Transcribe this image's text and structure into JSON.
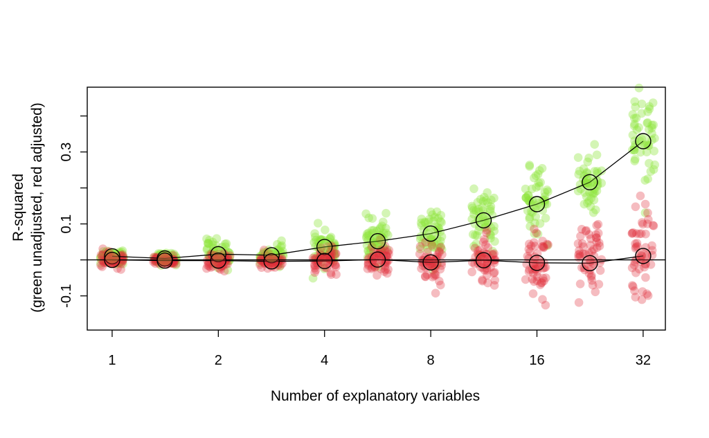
{
  "chart_data": {
    "type": "scatter",
    "title": "",
    "xlabel": "Number of explanatory variables",
    "ylabel_line1": "R-squared",
    "ylabel_line2": "(green unadjusted, red adjusted)",
    "x_scale": "log2",
    "x_ticks": [
      1,
      2,
      4,
      8,
      16,
      32
    ],
    "x_tick_labels": [
      "1",
      "2",
      "4",
      "8",
      "16",
      "32"
    ],
    "xlim": [
      0.85,
      37
    ],
    "y_ticks": [
      -0.1,
      0.1,
      0.3
    ],
    "y_tick_labels": [
      "-0.1",
      "0.1",
      "0.3"
    ],
    "y_minor_ticks": [
      0.0,
      0.2,
      0.4
    ],
    "ylim": [
      -0.195,
      0.48
    ],
    "reference_line_y": 0,
    "grid": false,
    "colors": {
      "green": "#8ee63c",
      "red": "#e0303a",
      "mean_marker": "#000000"
    },
    "series": [
      {
        "name": "green unadjusted",
        "x": [
          1,
          1.41,
          2,
          2.83,
          4,
          5.66,
          8,
          11.3,
          16,
          22.6,
          32
        ],
        "mean": [
          0.01,
          0.004,
          0.016,
          0.013,
          0.036,
          0.052,
          0.073,
          0.11,
          0.155,
          0.216,
          0.33
        ],
        "spread_sd": [
          0.012,
          0.008,
          0.02,
          0.014,
          0.025,
          0.028,
          0.035,
          0.04,
          0.045,
          0.055,
          0.07
        ]
      },
      {
        "name": "red adjusted",
        "x": [
          1,
          1.41,
          2,
          2.83,
          4,
          5.66,
          8,
          11.3,
          16,
          22.6,
          32
        ],
        "mean": [
          0.0,
          -0.002,
          -0.002,
          -0.004,
          -0.003,
          0.001,
          -0.007,
          -0.001,
          -0.008,
          -0.009,
          0.011
        ],
        "spread_sd": [
          0.01,
          0.006,
          0.012,
          0.01,
          0.018,
          0.022,
          0.03,
          0.035,
          0.045,
          0.06,
          0.075
        ]
      }
    ]
  }
}
